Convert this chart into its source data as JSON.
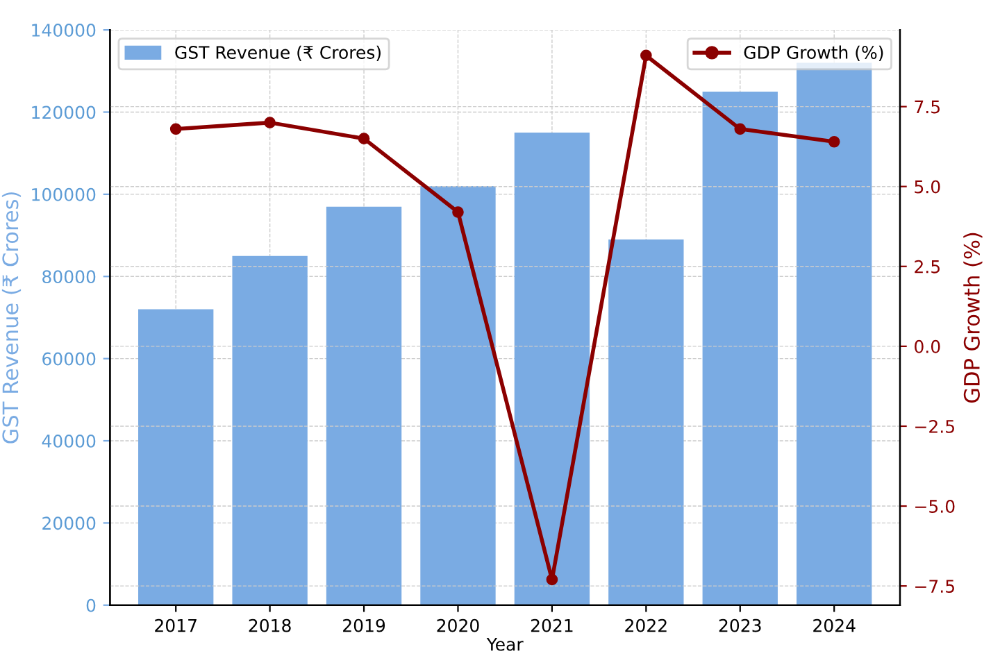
{
  "chart_data": {
    "type": "bar",
    "xlabel": "Year",
    "ylabel": "GST Revenue (₹ Crores)",
    "y2label": "GDP Growth (%)",
    "categories": [
      "2017",
      "2018",
      "2019",
      "2020",
      "2021",
      "2022",
      "2023",
      "2024"
    ],
    "series": [
      {
        "name": "GST Revenue (₹ Crores)",
        "color": "#7aabe3",
        "values": [
          72000,
          85000,
          97000,
          102000,
          115000,
          89000,
          125000,
          132000
        ]
      },
      {
        "name": "GDP Growth (%)",
        "type": "line",
        "axis": "y2",
        "color": "#8b0000",
        "marker": "circle",
        "line_style": "solid",
        "values": [
          6.8,
          7.0,
          6.5,
          4.2,
          -7.3,
          9.1,
          6.8,
          6.4
        ]
      }
    ],
    "ylim": [
      0,
      140000
    ],
    "yticks": [
      0,
      20000,
      40000,
      60000,
      80000,
      100000,
      120000,
      140000
    ],
    "y2lim": [
      -8.1,
      9.9
    ],
    "y2ticks": [
      {
        "value": -7.5,
        "label": "−7.5"
      },
      {
        "value": -5.0,
        "label": "−5.0"
      },
      {
        "value": -2.5,
        "label": "−2.5"
      },
      {
        "value": 0.0,
        "label": "0.0"
      },
      {
        "value": 2.5,
        "label": "2.5"
      },
      {
        "value": 5.0,
        "label": "5.0"
      },
      {
        "value": 7.5,
        "label": "7.5"
      }
    ],
    "grid": true,
    "legend": "top"
  }
}
